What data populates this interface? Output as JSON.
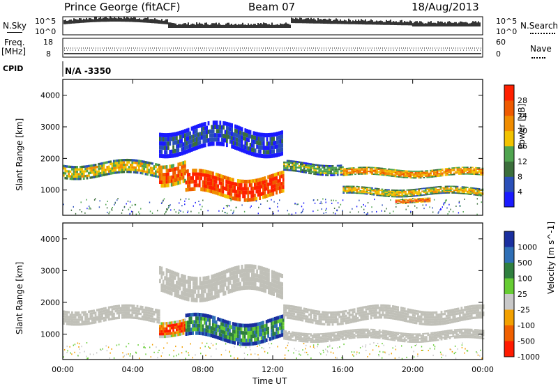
{
  "header": {
    "station": "Prince George (fitACF)",
    "beam": "Beam 07",
    "date": "18/Aug/2013"
  },
  "summary_panels": {
    "nsky_label": "N.Sky",
    "nsky_ticks": [
      "10^5",
      "10^0"
    ],
    "nsearch_label": "N.Search",
    "freq_label": "Freq.",
    "freq_unit": "[MHz]",
    "freq_ticks": [
      "18",
      "8"
    ],
    "nave_label": "Nave",
    "nave_ticks": [
      "60",
      "0"
    ],
    "cpid_label": "CPID",
    "cpid_value": "N/A -3350"
  },
  "colors": {
    "power_scale": [
      "#1a1aff",
      "#2a4fb8",
      "#3b6e3b",
      "#4fa44f",
      "#f2c200",
      "#f08c00",
      "#ef5a00",
      "#ff2000"
    ],
    "velocity_scale": [
      "#1a2f9f",
      "#2f6fb6",
      "#2f7f3f",
      "#66cc33",
      "#c8c8c8",
      "#f2a000",
      "#f06000",
      "#ff1a00"
    ],
    "ground_scatter": "#c0c0b8"
  },
  "chart_data": [
    {
      "type": "heatmap",
      "quantity": "Power",
      "xlabel": "Time UT",
      "ylabel": "Slant Range [km]",
      "x_ticks": [
        "00:00",
        "04:00",
        "08:00",
        "12:00",
        "16:00",
        "20:00",
        "00:00"
      ],
      "y_ticks": [
        1000,
        2000,
        3000,
        4000
      ],
      "ylim": [
        200,
        4500
      ],
      "colorbar": {
        "label": "Power [dB]",
        "ticks": [
          "4",
          "8",
          "12",
          "16",
          "20",
          "24",
          "28"
        ],
        "range": [
          0,
          30
        ]
      },
      "bands": [
        {
          "start_h": 0.0,
          "end_h": 5.5,
          "center_km": 1650,
          "width_km": 450,
          "level": 4
        },
        {
          "start_h": 5.5,
          "end_h": 7.0,
          "center_km": 1600,
          "width_km": 700,
          "level": 6
        },
        {
          "start_h": 7.0,
          "end_h": 12.6,
          "center_km": 1150,
          "width_km": 700,
          "level": 7
        },
        {
          "start_h": 12.6,
          "end_h": 16.0,
          "center_km": 1700,
          "width_km": 350,
          "level": 3
        },
        {
          "start_h": 16.0,
          "end_h": 24.0,
          "center_km": 1550,
          "width_km": 250,
          "level": 5
        },
        {
          "start_h": 16.0,
          "end_h": 24.0,
          "center_km": 950,
          "width_km": 250,
          "level": 4
        },
        {
          "start_h": 19.0,
          "end_h": 21.0,
          "center_km": 650,
          "width_km": 150,
          "level": 6
        },
        {
          "start_h": 5.5,
          "end_h": 12.5,
          "center_km": 2600,
          "width_km": 800,
          "level": 1
        }
      ]
    },
    {
      "type": "heatmap",
      "quantity": "Velocity",
      "xlabel": "Time UT",
      "ylabel": "Slant Range [km]",
      "x_ticks": [
        "00:00",
        "04:00",
        "08:00",
        "12:00",
        "16:00",
        "20:00",
        "00:00"
      ],
      "y_ticks": [
        1000,
        2000,
        3000,
        4000
      ],
      "ylim": [
        200,
        4500
      ],
      "colorbar": {
        "label": "Velocity [m s^-1]",
        "ticks": [
          "1000",
          "500",
          "100",
          "25",
          "-25",
          "-100",
          "-500",
          "-1000"
        ]
      },
      "bands": [
        {
          "start_h": 0.0,
          "end_h": 5.5,
          "center_km": 1600,
          "width_km": 450,
          "level": "ground"
        },
        {
          "start_h": 5.5,
          "end_h": 7.0,
          "center_km": 1250,
          "width_km": 500,
          "level": 6
        },
        {
          "start_h": 7.0,
          "end_h": 12.6,
          "center_km": 1150,
          "width_km": 700,
          "level": 2
        },
        {
          "start_h": 12.6,
          "end_h": 24.0,
          "center_km": 1600,
          "width_km": 450,
          "level": "ground"
        },
        {
          "start_h": 12.6,
          "end_h": 24.0,
          "center_km": 950,
          "width_km": 300,
          "level": "ground"
        },
        {
          "start_h": 5.5,
          "end_h": 12.5,
          "center_km": 2600,
          "width_km": 800,
          "level": "ground"
        }
      ]
    }
  ]
}
